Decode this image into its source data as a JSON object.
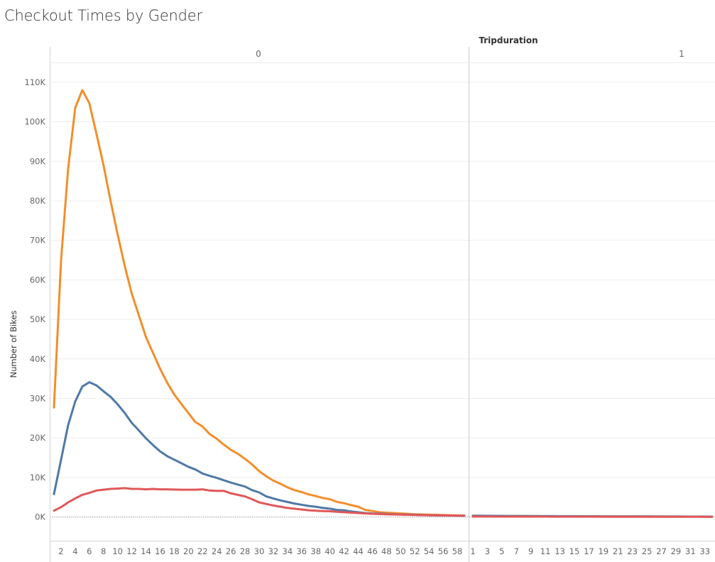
{
  "chart_data": {
    "type": "line",
    "title": "Checkout Times by Gender",
    "column_header": "Tripduration",
    "ylabel": "Number of Bikes",
    "ylim": [
      -6000,
      115000
    ],
    "y_ticks": [
      0,
      10000,
      20000,
      30000,
      40000,
      50000,
      60000,
      70000,
      80000,
      90000,
      100000,
      110000
    ],
    "y_tick_labels": [
      "0K",
      "10K",
      "20K",
      "30K",
      "40K",
      "50K",
      "60K",
      "70K",
      "80K",
      "90K",
      "100K",
      "110K"
    ],
    "grid": true,
    "panes": [
      {
        "label": "0",
        "x_min": 1,
        "x_max": 59,
        "x_tick_labels": [
          "2",
          "4",
          "6",
          "8",
          "10",
          "12",
          "14",
          "16",
          "18",
          "20",
          "22",
          "24",
          "26",
          "28",
          "30",
          "32",
          "34",
          "36",
          "38",
          "40",
          "42",
          "44",
          "46",
          "48",
          "50",
          "52",
          "54",
          "56",
          "58"
        ],
        "series": [
          {
            "color": "#f28e2b",
            "x": [
              1,
              2,
              3,
              4,
              5,
              6,
              7,
              8,
              9,
              10,
              11,
              12,
              13,
              14,
              15,
              16,
              17,
              18,
              19,
              20,
              21,
              22,
              23,
              24,
              25,
              26,
              27,
              28,
              29,
              30,
              31,
              32,
              33,
              34,
              35,
              36,
              37,
              38,
              39,
              40,
              41,
              42,
              43,
              44,
              45,
              46,
              47,
              48,
              49,
              50,
              51,
              52,
              53,
              54,
              55,
              56,
              57,
              58,
              59
            ],
            "y": [
              27700,
              65000,
              88000,
              103500,
              108000,
              104700,
              97000,
              89000,
              80000,
              71500,
              63500,
              56500,
              51000,
              45500,
              41500,
              37500,
              34000,
              31000,
              28600,
              26300,
              24000,
              22900,
              21000,
              19800,
              18300,
              17000,
              16000,
              14700,
              13300,
              11600,
              10300,
              9200,
              8400,
              7500,
              6800,
              6300,
              5700,
              5300,
              4800,
              4500,
              3800,
              3500,
              3000,
              2600,
              1800,
              1500,
              1200,
              1100,
              1000,
              900,
              800,
              700,
              650,
              600,
              550,
              500,
              450,
              400,
              350
            ]
          },
          {
            "color": "#4e79a7",
            "x": [
              1,
              2,
              3,
              4,
              5,
              6,
              7,
              8,
              9,
              10,
              11,
              12,
              13,
              14,
              15,
              16,
              17,
              18,
              19,
              20,
              21,
              22,
              23,
              24,
              25,
              26,
              27,
              28,
              29,
              30,
              31,
              32,
              33,
              34,
              35,
              36,
              37,
              38,
              39,
              40,
              41,
              42,
              43,
              44,
              45,
              46,
              47,
              48,
              49,
              50,
              51,
              52,
              53,
              54,
              55,
              56,
              57,
              58,
              59
            ],
            "y": [
              5800,
              14500,
              23200,
              29200,
              33000,
              34100,
              33300,
              31800,
              30400,
              28500,
              26300,
              23800,
              21900,
              19900,
              18200,
              16600,
              15400,
              14500,
              13600,
              12700,
              12000,
              11000,
              10400,
              9900,
              9300,
              8700,
              8200,
              7700,
              6800,
              6200,
              5200,
              4700,
              4200,
              3800,
              3400,
              3100,
              2800,
              2600,
              2300,
              2100,
              1800,
              1700,
              1400,
              1200,
              1000,
              900,
              850,
              750,
              700,
              650,
              600,
              550,
              500,
              450,
              420,
              400,
              380,
              360,
              340
            ]
          },
          {
            "color": "#e15759",
            "x": [
              1,
              2,
              3,
              4,
              5,
              6,
              7,
              8,
              9,
              10,
              11,
              12,
              13,
              14,
              15,
              16,
              17,
              18,
              19,
              20,
              21,
              22,
              23,
              24,
              25,
              26,
              27,
              28,
              29,
              30,
              31,
              32,
              33,
              34,
              35,
              36,
              37,
              38,
              39,
              40,
              41,
              42,
              43,
              44,
              45,
              46,
              47,
              48,
              49,
              50,
              51,
              52,
              53,
              54,
              55,
              56,
              57,
              58,
              59
            ],
            "y": [
              1600,
              2500,
              3700,
              4700,
              5600,
              6100,
              6700,
              6900,
              7100,
              7200,
              7300,
              7100,
              7100,
              7000,
              7100,
              7000,
              7000,
              6950,
              6900,
              6900,
              6900,
              7000,
              6700,
              6600,
              6600,
              6000,
              5600,
              5200,
              4500,
              3700,
              3300,
              2900,
              2600,
              2300,
              2100,
              1900,
              1700,
              1600,
              1500,
              1450,
              1300,
              1200,
              1100,
              1000,
              900,
              800,
              750,
              700,
              650,
              600,
              550,
              500,
              470,
              440,
              420,
              400,
              380,
              360,
              340
            ]
          }
        ]
      },
      {
        "label": "1",
        "x_min": 1,
        "x_max": 34,
        "x_tick_labels": [
          "1",
          "3",
          "5",
          "7",
          "9",
          "11",
          "13",
          "15",
          "17",
          "19",
          "21",
          "23",
          "25",
          "27",
          "29",
          "31",
          "33"
        ],
        "series": [
          {
            "color": "#f28e2b",
            "x": [
              1,
              2,
              3,
              4,
              5,
              6,
              7,
              8,
              9,
              10,
              11,
              12,
              13,
              14,
              15,
              16,
              17,
              18,
              19,
              20,
              21,
              22,
              23,
              24,
              25,
              26,
              27,
              28,
              29,
              30,
              31,
              32,
              33,
              34
            ],
            "y": [
              320,
              310,
              300,
              290,
              280,
              270,
              260,
              250,
              240,
              230,
              220,
              210,
              200,
              195,
              190,
              185,
              180,
              175,
              170,
              165,
              160,
              155,
              150,
              145,
              140,
              135,
              130,
              125,
              120,
              115,
              110,
              105,
              100,
              95
            ]
          },
          {
            "color": "#4e79a7",
            "x": [
              1,
              2,
              3,
              4,
              5,
              6,
              7,
              8,
              9,
              10,
              11,
              12,
              13,
              14,
              15,
              16,
              17,
              18,
              19,
              20,
              21,
              22,
              23,
              24,
              25,
              26,
              27,
              28,
              29,
              30,
              31,
              32,
              33,
              34
            ],
            "y": [
              300,
              295,
              285,
              275,
              265,
              255,
              245,
              240,
              230,
              220,
              210,
              205,
              195,
              190,
              185,
              180,
              175,
              170,
              165,
              160,
              155,
              150,
              145,
              140,
              135,
              130,
              125,
              120,
              115,
              110,
              105,
              100,
              95,
              90
            ]
          },
          {
            "color": "#e15759",
            "x": [
              1,
              2,
              3,
              4,
              5,
              6,
              7,
              8,
              9,
              10,
              11,
              12,
              13,
              14,
              15,
              16,
              17,
              18,
              19,
              20,
              21,
              22,
              23,
              24,
              25,
              26,
              27,
              28,
              29,
              30,
              31,
              32,
              33,
              34
            ],
            "y": [
              120,
              118,
              115,
              112,
              110,
              108,
              105,
              102,
              100,
              98,
              95,
              92,
              90,
              88,
              85,
              82,
              80,
              78,
              75,
              72,
              70,
              68,
              65,
              62,
              60,
              58,
              55,
              52,
              50,
              48,
              45,
              42,
              40,
              38
            ]
          }
        ]
      }
    ]
  }
}
